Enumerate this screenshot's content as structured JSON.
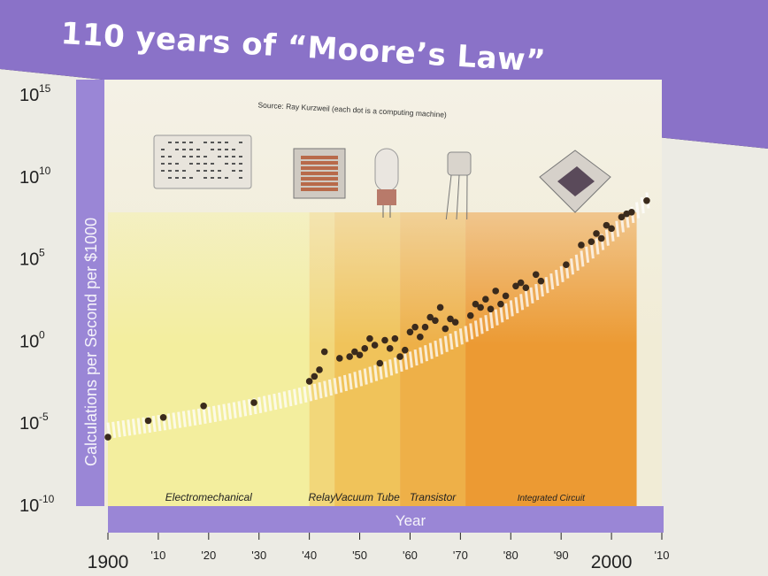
{
  "slide": {
    "title": "110 years of “Moore’s Law”",
    "source": "Source: Ray Kurzweil (each dot is a computing machine)"
  },
  "colors": {
    "title_band": "#8a72c8",
    "axis_band": "#9a86d6",
    "plot_bg": "#f1ecd6",
    "dot": "#3a2a1c",
    "trend_band": "#ffffff"
  },
  "chart_data": {
    "type": "scatter",
    "title": "110 years of “Moore’s Law”",
    "xlabel": "Year",
    "ylabel": "Calculations per Second per $1000",
    "xlim": [
      1900,
      2010
    ],
    "ylim": [
      -10,
      15
    ],
    "y_scale": "log10",
    "y_ticks": [
      {
        "v": 15,
        "base": "10",
        "exp": "15"
      },
      {
        "v": 10,
        "base": "10",
        "exp": "10"
      },
      {
        "v": 5,
        "base": "10",
        "exp": "5"
      },
      {
        "v": 0,
        "base": "10",
        "exp": "0"
      },
      {
        "v": -5,
        "base": "10",
        "exp": "-5"
      },
      {
        "v": -10,
        "base": "10",
        "exp": "-10"
      }
    ],
    "x_ticks": [
      {
        "v": 1900,
        "label": "1900"
      },
      {
        "v": 1910,
        "label": "'10"
      },
      {
        "v": 1920,
        "label": "'20"
      },
      {
        "v": 1930,
        "label": "'30"
      },
      {
        "v": 1940,
        "label": "'40"
      },
      {
        "v": 1950,
        "label": "'50"
      },
      {
        "v": 1960,
        "label": "'60"
      },
      {
        "v": 1970,
        "label": "'70"
      },
      {
        "v": 1980,
        "label": "'80"
      },
      {
        "v": 1990,
        "label": "'90"
      },
      {
        "v": 2000,
        "label": "2000"
      },
      {
        "v": 2010,
        "label": "'10"
      }
    ],
    "eras": [
      {
        "name": "Electromechanical",
        "start": 1900,
        "end": 1940,
        "color": "#f3ee9e"
      },
      {
        "name": "Relay",
        "start": 1940,
        "end": 1945,
        "color": "#f2d77a"
      },
      {
        "name": "Vacuum Tube",
        "start": 1945,
        "end": 1958,
        "color": "#f0c35a"
      },
      {
        "name": "Transistor",
        "start": 1958,
        "end": 1971,
        "color": "#eeb048"
      },
      {
        "name": "Integrated Circuit",
        "start": 1971,
        "end": 2005,
        "color": "#ec9a33"
      }
    ],
    "points": [
      {
        "year": 1900,
        "log": -5.8
      },
      {
        "year": 1908,
        "log": -4.8
      },
      {
        "year": 1911,
        "log": -4.6
      },
      {
        "year": 1919,
        "log": -3.9
      },
      {
        "year": 1929,
        "log": -3.7
      },
      {
        "year": 1940,
        "log": -2.4
      },
      {
        "year": 1941,
        "log": -2.1
      },
      {
        "year": 1942,
        "log": -1.7
      },
      {
        "year": 1943,
        "log": -0.6
      },
      {
        "year": 1946,
        "log": -1.0
      },
      {
        "year": 1948,
        "log": -0.9
      },
      {
        "year": 1949,
        "log": -0.6
      },
      {
        "year": 1950,
        "log": -0.8
      },
      {
        "year": 1951,
        "log": -0.4
      },
      {
        "year": 1952,
        "log": 0.2
      },
      {
        "year": 1953,
        "log": -0.2
      },
      {
        "year": 1954,
        "log": -1.3
      },
      {
        "year": 1955,
        "log": 0.1
      },
      {
        "year": 1956,
        "log": -0.4
      },
      {
        "year": 1957,
        "log": 0.2
      },
      {
        "year": 1958,
        "log": -0.9
      },
      {
        "year": 1959,
        "log": -0.5
      },
      {
        "year": 1960,
        "log": 0.6
      },
      {
        "year": 1961,
        "log": 0.9
      },
      {
        "year": 1962,
        "log": 0.3
      },
      {
        "year": 1963,
        "log": 0.9
      },
      {
        "year": 1964,
        "log": 1.5
      },
      {
        "year": 1965,
        "log": 1.3
      },
      {
        "year": 1966,
        "log": 2.1
      },
      {
        "year": 1967,
        "log": 0.8
      },
      {
        "year": 1968,
        "log": 1.4
      },
      {
        "year": 1969,
        "log": 1.2
      },
      {
        "year": 1972,
        "log": 1.6
      },
      {
        "year": 1973,
        "log": 2.3
      },
      {
        "year": 1974,
        "log": 2.1
      },
      {
        "year": 1975,
        "log": 2.6
      },
      {
        "year": 1976,
        "log": 2.0
      },
      {
        "year": 1977,
        "log": 3.1
      },
      {
        "year": 1978,
        "log": 2.3
      },
      {
        "year": 1979,
        "log": 2.8
      },
      {
        "year": 1981,
        "log": 3.4
      },
      {
        "year": 1982,
        "log": 3.6
      },
      {
        "year": 1983,
        "log": 3.3
      },
      {
        "year": 1985,
        "log": 4.1
      },
      {
        "year": 1986,
        "log": 3.7
      },
      {
        "year": 1991,
        "log": 4.7
      },
      {
        "year": 1994,
        "log": 5.9
      },
      {
        "year": 1996,
        "log": 6.1
      },
      {
        "year": 1997,
        "log": 6.6
      },
      {
        "year": 1998,
        "log": 6.3
      },
      {
        "year": 1999,
        "log": 7.1
      },
      {
        "year": 2000,
        "log": 6.9
      },
      {
        "year": 2002,
        "log": 7.6
      },
      {
        "year": 2003,
        "log": 7.8
      },
      {
        "year": 2004,
        "log": 7.9
      },
      {
        "year": 2007,
        "log": 8.6
      }
    ]
  }
}
